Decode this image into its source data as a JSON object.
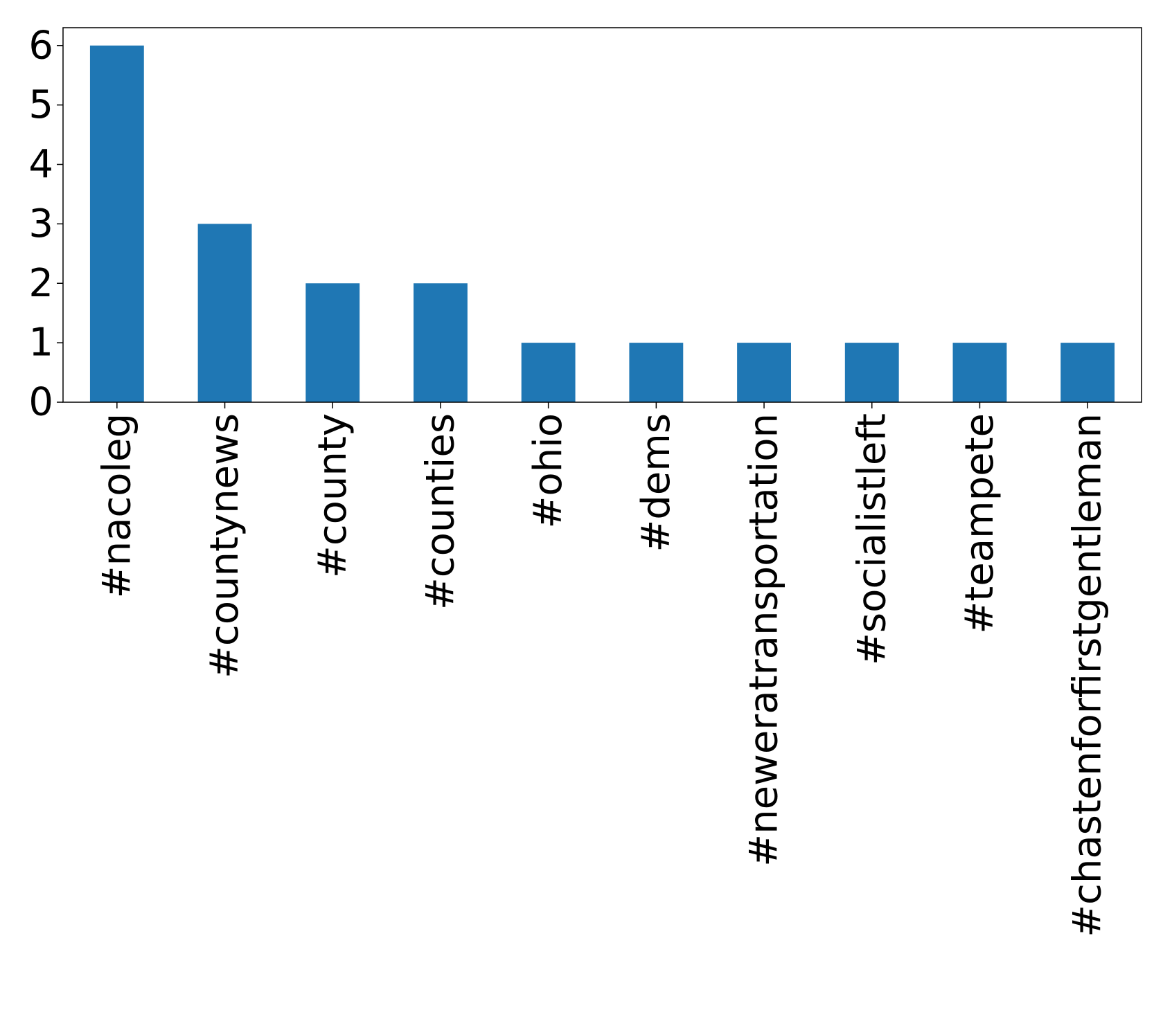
{
  "chart_data": {
    "type": "bar",
    "categories": [
      "#nacoleg",
      "#countynews",
      "#county",
      "#counties",
      "#ohio",
      "#dems",
      "#neweratransportation",
      "#socialistleft",
      "#teampete",
      "#chastenforfirstgentleman"
    ],
    "values": [
      6,
      3,
      2,
      2,
      1,
      1,
      1,
      1,
      1,
      1
    ],
    "title": "",
    "xlabel": "",
    "ylabel": "",
    "ylim": [
      0,
      6.3
    ],
    "yticks": [
      0,
      1,
      2,
      3,
      4,
      5,
      6
    ],
    "grid": false,
    "colors": {
      "bar": "#1f77b4",
      "axis": "#000000",
      "background": "#ffffff"
    }
  }
}
